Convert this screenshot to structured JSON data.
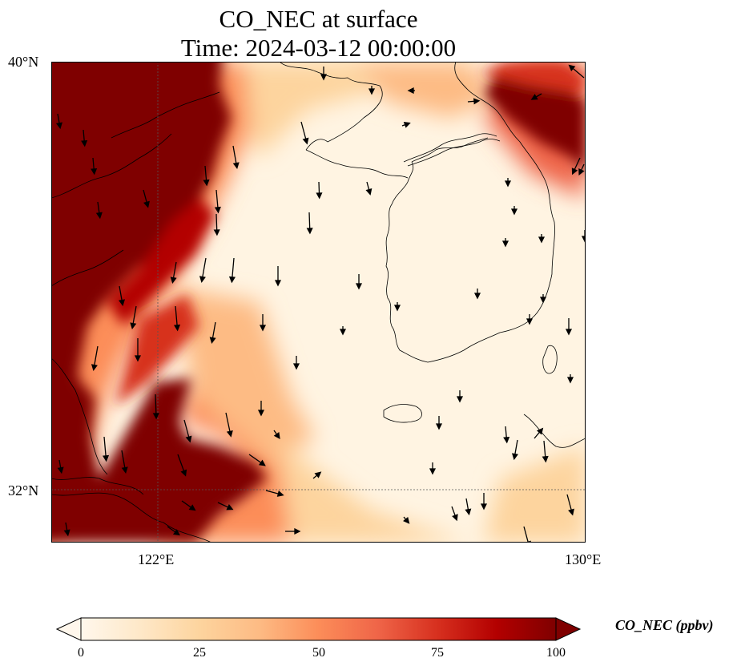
{
  "title": {
    "line1": "CO_NEC at surface",
    "line2": "Time: 2024-03-12 00:00:00"
  },
  "axes": {
    "lat_labels": [
      "40°N",
      "32°N"
    ],
    "lon_labels": [
      "122°E",
      "130°E"
    ],
    "lat_range": [
      31,
      40
    ],
    "lon_range": [
      120,
      130
    ]
  },
  "colorbar": {
    "label": "CO_NEC (ppbv)",
    "ticks": [
      "0",
      "25",
      "50",
      "75",
      "100"
    ],
    "range": [
      0,
      100
    ],
    "extend": "both",
    "colormap": "OrRd",
    "colors": [
      "#fff7ec",
      "#fee8c8",
      "#fdd49e",
      "#fdbb84",
      "#fc8d59",
      "#ef6548",
      "#d7301f",
      "#b30000",
      "#7f0000"
    ]
  },
  "map": {
    "background": "#fff4e2",
    "gridlines": "dotted",
    "features": [
      "coastlines",
      "wind-vectors"
    ]
  }
}
